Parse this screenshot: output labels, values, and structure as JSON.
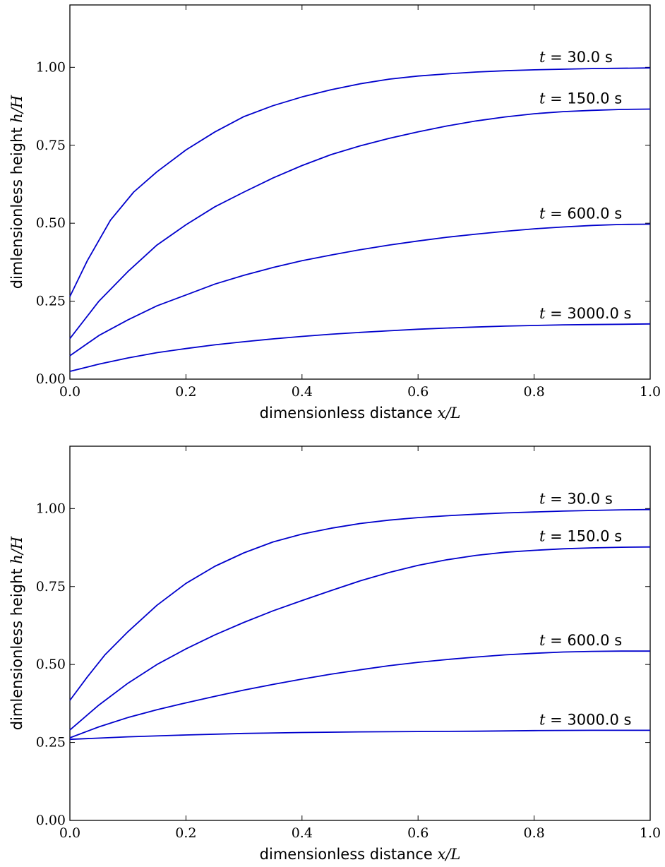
{
  "chart_data": [
    {
      "type": "line",
      "title": "",
      "xlabel": "dimensionless distance",
      "xlabel_math": "x/L",
      "ylabel": "dimlensionless height",
      "ylabel_math": "h/H",
      "xlim": [
        0.0,
        1.0
      ],
      "ylim": [
        0.0,
        1.2
      ],
      "xticks": [
        "0.0",
        "0.2",
        "0.4",
        "0.6",
        "0.8",
        "1.0"
      ],
      "yticks": [
        "0.00",
        "0.25",
        "0.50",
        "0.75",
        "1.00"
      ],
      "series": [
        {
          "name": "t = 30.0 s",
          "label_prefix": "t",
          "label_value": "= 30.0 s",
          "x": [
            0.0,
            0.03,
            0.07,
            0.11,
            0.15,
            0.2,
            0.25,
            0.3,
            0.35,
            0.4,
            0.45,
            0.5,
            0.55,
            0.6,
            0.65,
            0.7,
            0.75,
            0.8,
            0.85,
            0.9,
            0.95,
            1.0
          ],
          "y": [
            0.265,
            0.38,
            0.51,
            0.6,
            0.665,
            0.735,
            0.793,
            0.842,
            0.877,
            0.905,
            0.928,
            0.947,
            0.962,
            0.972,
            0.979,
            0.985,
            0.989,
            0.992,
            0.994,
            0.996,
            0.997,
            0.998
          ]
        },
        {
          "name": "t = 150.0 s",
          "label_prefix": "t",
          "label_value": "= 150.0 s",
          "x": [
            0.0,
            0.05,
            0.1,
            0.15,
            0.2,
            0.25,
            0.3,
            0.35,
            0.4,
            0.45,
            0.5,
            0.55,
            0.6,
            0.65,
            0.7,
            0.75,
            0.8,
            0.85,
            0.9,
            0.95,
            1.0
          ],
          "y": [
            0.13,
            0.25,
            0.345,
            0.43,
            0.495,
            0.553,
            0.6,
            0.645,
            0.685,
            0.72,
            0.748,
            0.772,
            0.793,
            0.812,
            0.828,
            0.841,
            0.851,
            0.858,
            0.862,
            0.865,
            0.866
          ]
        },
        {
          "name": "t = 600.0 s",
          "label_prefix": "t",
          "label_value": "= 600.0 s",
          "x": [
            0.0,
            0.05,
            0.1,
            0.15,
            0.2,
            0.25,
            0.3,
            0.35,
            0.4,
            0.45,
            0.5,
            0.55,
            0.6,
            0.65,
            0.7,
            0.75,
            0.8,
            0.85,
            0.9,
            0.95,
            1.0
          ],
          "y": [
            0.075,
            0.14,
            0.19,
            0.235,
            0.27,
            0.305,
            0.333,
            0.358,
            0.38,
            0.398,
            0.415,
            0.43,
            0.443,
            0.455,
            0.465,
            0.474,
            0.482,
            0.488,
            0.493,
            0.496,
            0.497
          ]
        },
        {
          "name": "t = 3000.0 s",
          "label_prefix": "t",
          "label_value": "= 3000.0 s",
          "x": [
            0.0,
            0.05,
            0.1,
            0.15,
            0.2,
            0.25,
            0.3,
            0.35,
            0.4,
            0.45,
            0.5,
            0.55,
            0.6,
            0.65,
            0.7,
            0.75,
            0.8,
            0.85,
            0.9,
            0.95,
            1.0
          ],
          "y": [
            0.025,
            0.048,
            0.068,
            0.085,
            0.098,
            0.11,
            0.12,
            0.129,
            0.137,
            0.144,
            0.15,
            0.155,
            0.16,
            0.164,
            0.167,
            0.17,
            0.172,
            0.174,
            0.175,
            0.176,
            0.177
          ]
        }
      ]
    },
    {
      "type": "line",
      "title": "",
      "xlabel": "dimensionless distance",
      "xlabel_math": "x/L",
      "ylabel": "dimlensionless height",
      "ylabel_math": "h/H",
      "xlim": [
        0.0,
        1.0
      ],
      "ylim": [
        0.0,
        1.2
      ],
      "xticks": [
        "0.0",
        "0.2",
        "0.4",
        "0.6",
        "0.8",
        "1.0"
      ],
      "yticks": [
        "0.00",
        "0.25",
        "0.50",
        "0.75",
        "1.00"
      ],
      "series": [
        {
          "name": "t = 30.0 s",
          "label_prefix": "t",
          "label_value": "= 30.0 s",
          "x": [
            0.0,
            0.03,
            0.06,
            0.1,
            0.15,
            0.2,
            0.25,
            0.3,
            0.35,
            0.4,
            0.45,
            0.5,
            0.55,
            0.6,
            0.65,
            0.7,
            0.75,
            0.8,
            0.85,
            0.9,
            0.95,
            1.0
          ],
          "y": [
            0.385,
            0.46,
            0.53,
            0.605,
            0.69,
            0.76,
            0.815,
            0.858,
            0.893,
            0.918,
            0.937,
            0.952,
            0.963,
            0.971,
            0.977,
            0.982,
            0.986,
            0.989,
            0.992,
            0.994,
            0.996,
            0.997
          ]
        },
        {
          "name": "t = 150.0 s",
          "label_prefix": "t",
          "label_value": "= 150.0 s",
          "x": [
            0.0,
            0.05,
            0.1,
            0.15,
            0.2,
            0.25,
            0.3,
            0.35,
            0.4,
            0.45,
            0.5,
            0.55,
            0.6,
            0.65,
            0.7,
            0.75,
            0.8,
            0.85,
            0.9,
            0.95,
            1.0
          ],
          "y": [
            0.29,
            0.37,
            0.44,
            0.5,
            0.55,
            0.595,
            0.635,
            0.672,
            0.705,
            0.737,
            0.768,
            0.795,
            0.818,
            0.836,
            0.85,
            0.86,
            0.866,
            0.871,
            0.874,
            0.876,
            0.877
          ]
        },
        {
          "name": "t = 600.0 s",
          "label_prefix": "t",
          "label_value": "= 600.0 s",
          "x": [
            0.0,
            0.05,
            0.1,
            0.15,
            0.2,
            0.25,
            0.3,
            0.35,
            0.4,
            0.45,
            0.5,
            0.55,
            0.6,
            0.65,
            0.7,
            0.75,
            0.8,
            0.85,
            0.9,
            0.95,
            1.0
          ],
          "y": [
            0.265,
            0.3,
            0.33,
            0.355,
            0.377,
            0.398,
            0.418,
            0.436,
            0.453,
            0.469,
            0.483,
            0.496,
            0.507,
            0.516,
            0.524,
            0.531,
            0.536,
            0.54,
            0.542,
            0.543,
            0.543
          ]
        },
        {
          "name": "t = 3000.0 s",
          "label_prefix": "t",
          "label_value": "= 3000.0 s",
          "x": [
            0.0,
            0.1,
            0.2,
            0.3,
            0.4,
            0.5,
            0.6,
            0.7,
            0.8,
            0.9,
            1.0
          ],
          "y": [
            0.26,
            0.268,
            0.274,
            0.279,
            0.282,
            0.284,
            0.285,
            0.286,
            0.288,
            0.289,
            0.289
          ]
        }
      ]
    }
  ]
}
